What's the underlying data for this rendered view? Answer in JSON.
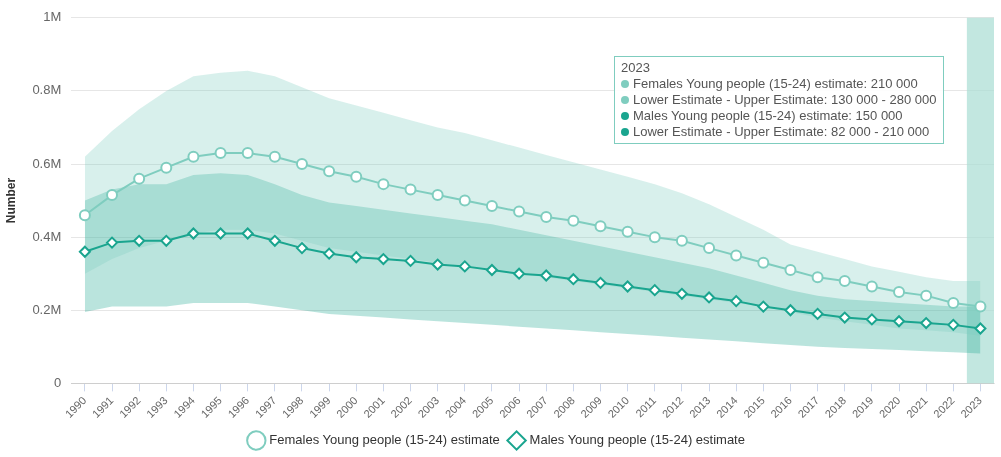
{
  "chart_data": {
    "type": "line",
    "ylabel": "Number",
    "categories": [
      "1990",
      "1991",
      "1992",
      "1993",
      "1994",
      "1995",
      "1996",
      "1997",
      "1998",
      "1999",
      "2000",
      "2001",
      "2002",
      "2003",
      "2004",
      "2005",
      "2006",
      "2007",
      "2008",
      "2009",
      "2010",
      "2011",
      "2012",
      "2013",
      "2014",
      "2015",
      "2016",
      "2017",
      "2018",
      "2019",
      "2020",
      "2021",
      "2022",
      "2023"
    ],
    "series": [
      {
        "name": "Females Young people (15-24) estimate",
        "color": "#7fcdbf",
        "marker": "circle",
        "values": [
          460000,
          515000,
          560000,
          590000,
          620000,
          630000,
          630000,
          620000,
          600000,
          580000,
          565000,
          545000,
          530000,
          515000,
          500000,
          485000,
          470000,
          455000,
          445000,
          430000,
          415000,
          400000,
          390000,
          370000,
          350000,
          330000,
          310000,
          290000,
          280000,
          265000,
          250000,
          240000,
          220000,
          210000
        ],
        "lower": [
          300000,
          340000,
          370000,
          390000,
          410000,
          420000,
          420000,
          410000,
          390000,
          370000,
          360000,
          350000,
          340000,
          330000,
          320000,
          310000,
          300000,
          290000,
          280000,
          270000,
          260000,
          250000,
          240000,
          230000,
          220000,
          210000,
          195000,
          180000,
          170000,
          160000,
          150000,
          145000,
          140000,
          130000
        ],
        "upper": [
          620000,
          690000,
          750000,
          800000,
          840000,
          850000,
          855000,
          840000,
          810000,
          780000,
          760000,
          740000,
          720000,
          700000,
          685000,
          665000,
          645000,
          625000,
          605000,
          585000,
          565000,
          545000,
          520000,
          490000,
          455000,
          420000,
          380000,
          360000,
          340000,
          320000,
          305000,
          290000,
          280000,
          280000
        ]
      },
      {
        "name": "Males Young people (15-24) estimate",
        "color": "#1aa58f",
        "marker": "diamond",
        "values": [
          360000,
          385000,
          390000,
          390000,
          410000,
          410000,
          410000,
          390000,
          370000,
          355000,
          345000,
          340000,
          335000,
          325000,
          320000,
          310000,
          300000,
          295000,
          285000,
          275000,
          265000,
          255000,
          245000,
          235000,
          225000,
          210000,
          200000,
          190000,
          180000,
          175000,
          170000,
          165000,
          160000,
          150000
        ],
        "lower": [
          195000,
          210000,
          210000,
          210000,
          220000,
          220000,
          220000,
          210000,
          200000,
          190000,
          185000,
          180000,
          175000,
          170000,
          165000,
          160000,
          155000,
          150000,
          145000,
          140000,
          135000,
          130000,
          125000,
          120000,
          115000,
          110000,
          105000,
          100000,
          97000,
          94000,
          91000,
          88000,
          85000,
          82000
        ],
        "upper": [
          500000,
          530000,
          545000,
          545000,
          570000,
          575000,
          570000,
          545000,
          515000,
          495000,
          485000,
          475000,
          465000,
          455000,
          445000,
          435000,
          420000,
          405000,
          390000,
          375000,
          360000,
          345000,
          330000,
          315000,
          295000,
          275000,
          255000,
          240000,
          230000,
          225000,
          220000,
          215000,
          210000,
          210000
        ]
      }
    ],
    "ylim": [
      0,
      1000000
    ],
    "yticks": [
      0,
      {
        "value": 200000,
        "label": "0.2M"
      },
      {
        "value": 400000,
        "label": "0.4M"
      },
      {
        "value": 600000,
        "label": "0.6M"
      },
      {
        "value": 800000,
        "label": "0.8M"
      },
      {
        "value": 1000000,
        "label": "1M"
      }
    ],
    "grid": "y",
    "legend": "bottom",
    "line_style": "solid",
    "bands": [
      {
        "axis": "x",
        "from": "2023",
        "to": "2023",
        "color": "#a8ddd3"
      }
    ],
    "annotations": [
      "2023",
      "Females Young people (15-24) estimate: 210 000",
      "Lower Estimate - Upper Estimate: 130 000 - 280 000",
      "Males Young people (15-24) estimate: 150 000",
      "Lower Estimate - Upper Estimate: 82 000 - 210 000"
    ]
  }
}
